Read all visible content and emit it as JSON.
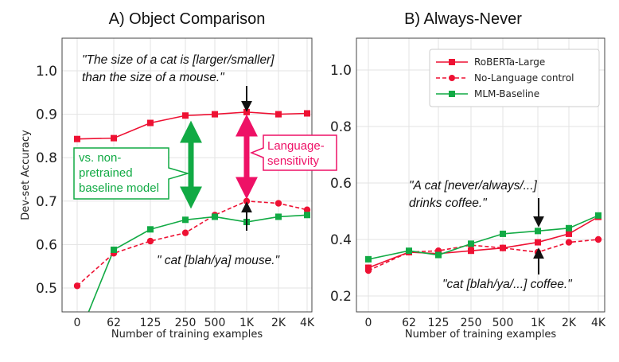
{
  "chart_data": [
    {
      "type": "line",
      "title": "A) Object Comparison",
      "xlabel": "Number of training examples",
      "ylabel": "Dev-set Accuracy",
      "categories": [
        "0",
        "62",
        "125",
        "250",
        "500",
        "1K",
        "2K",
        "4K"
      ],
      "yticks": [
        "0.5",
        "0.6",
        "0.7",
        "0.8",
        "0.9",
        "1.0"
      ],
      "ylim": [
        0.45,
        1.05
      ],
      "grid": true,
      "series": [
        {
          "key": "roberta",
          "values": [
            0.843,
            0.845,
            0.88,
            0.897,
            0.9,
            0.905,
            0.9,
            0.902
          ],
          "color": "#ee1133",
          "style": "solid",
          "marker": "square"
        },
        {
          "key": "nolang",
          "values": [
            0.505,
            0.58,
            0.608,
            0.627,
            0.668,
            0.7,
            0.695,
            0.68
          ],
          "color": "#ee1133",
          "style": "dashed",
          "marker": "circle"
        },
        {
          "key": "mlm",
          "values": [
            0.38,
            0.588,
            0.635,
            0.657,
            0.664,
            0.652,
            0.664,
            0.668
          ],
          "color": "#11aa44",
          "style": "solid",
          "marker": "square"
        }
      ],
      "annotations": {
        "top_quote": [
          "\"The size of a cat is [larger/smaller]",
          "than the size of a mouse.\""
        ],
        "bottom_quote": "\" cat [blah/ya] mouse.\"",
        "green_box": [
          "vs. non-",
          "pretrained",
          "baseline model"
        ],
        "red_box": [
          "Language-",
          "sensitivity"
        ]
      }
    },
    {
      "type": "line",
      "title": "B) Always-Never",
      "xlabel": "Number of training examples",
      "ylabel": "",
      "categories": [
        "0",
        "62",
        "125",
        "250",
        "500",
        "1K",
        "2K",
        "4K"
      ],
      "yticks": [
        "0.2",
        "0.4",
        "0.6",
        "0.8",
        "1.0"
      ],
      "ylim": [
        0.15,
        1.05
      ],
      "grid": true,
      "legend": "top-right",
      "series": [
        {
          "key": "roberta",
          "name": "RoBERTa-Large",
          "values": [
            0.3,
            0.355,
            0.35,
            0.36,
            0.37,
            0.39,
            0.42,
            0.48
          ],
          "color": "#ee1133",
          "style": "solid",
          "marker": "square"
        },
        {
          "key": "nolang",
          "name": "No-Language control",
          "values": [
            0.29,
            0.355,
            0.36,
            0.38,
            0.37,
            0.355,
            0.39,
            0.4
          ],
          "color": "#ee1133",
          "style": "dashed",
          "marker": "circle"
        },
        {
          "key": "mlm",
          "name": "MLM-Baseline",
          "values": [
            0.33,
            0.36,
            0.345,
            0.385,
            0.42,
            0.43,
            0.44,
            0.485
          ],
          "color": "#11aa44",
          "style": "solid",
          "marker": "square"
        }
      ],
      "annotations": {
        "top_quote": [
          "\"A cat [never/always/...]",
          "drinks coffee.\""
        ],
        "bottom_quote": "\"cat [blah/ya/...] coffee.\""
      }
    }
  ]
}
